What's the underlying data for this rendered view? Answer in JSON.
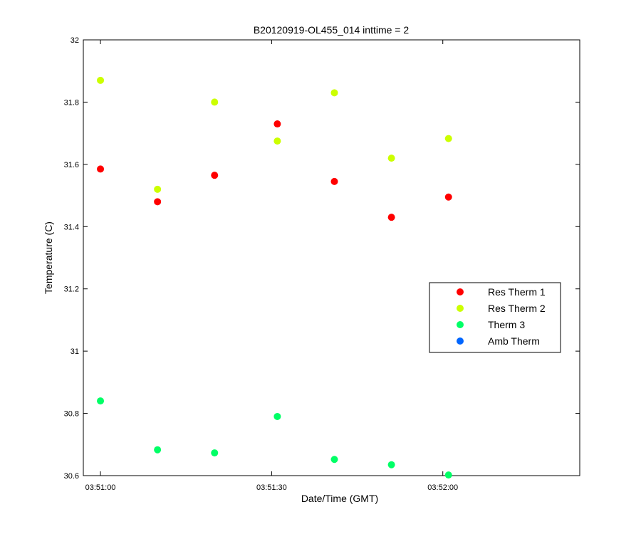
{
  "chart_data": {
    "type": "scatter",
    "title": "B20120919-OL455_014 inttime = 2",
    "xlabel": "Date/Time (GMT)",
    "ylabel": "Temperature (C)",
    "xlim": [
      "03:50:57",
      "03:52:24"
    ],
    "ylim": [
      30.6,
      32
    ],
    "x_ticks": [
      "03:51:00",
      "03:51:30",
      "03:52:00"
    ],
    "y_ticks": [
      30.6,
      30.8,
      31,
      31.2,
      31.4,
      31.6,
      31.8,
      32
    ],
    "y_tick_labels": [
      "30.6",
      "30.8",
      "31",
      "31.2",
      "31.4",
      "31.6",
      "31.8",
      "32"
    ],
    "grid": false,
    "legend_position": "right",
    "x": [
      "03:51:00",
      "03:51:10",
      "03:51:20",
      "03:51:31",
      "03:51:41",
      "03:51:51",
      "03:52:01"
    ],
    "series": [
      {
        "name": "Res Therm 1",
        "color": "#ff0000",
        "values": [
          31.585,
          31.48,
          31.565,
          31.73,
          31.545,
          31.43,
          31.495
        ]
      },
      {
        "name": "Res Therm 2",
        "color": "#ccff00",
        "values": [
          31.87,
          31.52,
          31.8,
          31.675,
          31.83,
          31.62,
          31.683
        ]
      },
      {
        "name": "Therm 3",
        "color": "#00ff66",
        "values": [
          30.84,
          30.683,
          30.673,
          30.79,
          30.652,
          30.635,
          30.602
        ]
      },
      {
        "name": "Amb Therm",
        "color": "#0066ff",
        "values": []
      }
    ]
  }
}
